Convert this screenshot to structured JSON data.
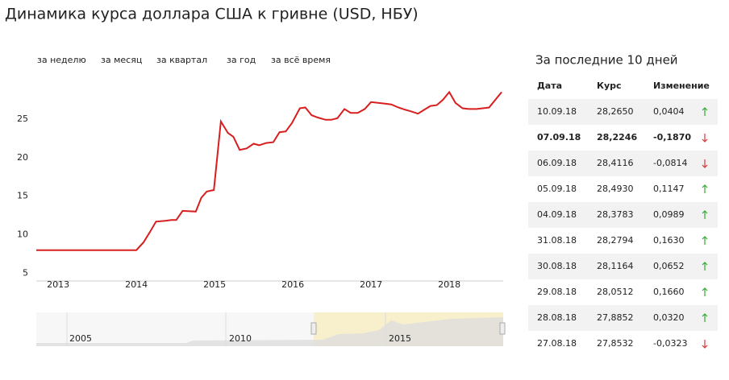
{
  "chart_data": {
    "type": "line",
    "title": "Динамика курса доллара США к гривне (USD, НБУ)",
    "x": [
      2012.72,
      2014.0,
      2014.09,
      2014.17,
      2014.25,
      2014.37,
      2014.45,
      2014.51,
      2014.59,
      2014.76,
      2014.83,
      2014.9,
      2014.99,
      2015.08,
      2015.17,
      2015.24,
      2015.32,
      2015.41,
      2015.5,
      2015.57,
      2015.66,
      2015.75,
      2015.83,
      2015.91,
      2015.99,
      2016.09,
      2016.16,
      2016.24,
      2016.32,
      2016.42,
      2016.49,
      2016.57,
      2016.66,
      2016.74,
      2016.83,
      2016.92,
      2017.0,
      2017.09,
      2017.18,
      2017.26,
      2017.35,
      2017.44,
      2017.51,
      2017.6,
      2017.68,
      2017.76,
      2017.84,
      2017.92,
      2018.0,
      2018.08,
      2018.17,
      2018.25,
      2018.35,
      2018.43,
      2018.51,
      2018.59,
      2018.67
    ],
    "values": [
      8.0,
      8.0,
      9.0,
      10.3,
      11.7,
      11.8,
      11.9,
      11.9,
      13.1,
      13.0,
      14.8,
      15.6,
      15.8,
      24.7,
      23.2,
      22.7,
      21.0,
      21.2,
      21.8,
      21.6,
      21.9,
      22.0,
      23.3,
      23.4,
      24.5,
      26.4,
      26.5,
      25.5,
      25.2,
      24.9,
      24.9,
      25.1,
      26.3,
      25.8,
      25.8,
      26.3,
      27.2,
      27.1,
      27.0,
      26.9,
      26.5,
      26.2,
      26.0,
      25.7,
      26.2,
      26.7,
      26.8,
      27.5,
      28.5,
      27.1,
      26.4,
      26.3,
      26.3,
      26.4,
      26.5,
      27.5,
      28.5
    ],
    "color": "#d81e1e",
    "xlim": [
      2012.72,
      2018.69
    ],
    "xticks": [
      2013,
      2014,
      2015,
      2016,
      2017,
      2018
    ],
    "ylim": [
      4,
      30
    ],
    "yticks": [
      5,
      10,
      15,
      20,
      25
    ],
    "grid": false
  },
  "range_buttons": [
    "за неделю",
    "за месяц",
    "за квартал",
    "за год",
    "за всё время"
  ],
  "navigator": {
    "labels": [
      "2005",
      "2010",
      "2015"
    ]
  },
  "table": {
    "title": "За последние 10 дней",
    "columns": [
      "Дата",
      "Курс",
      "Изменение"
    ],
    "rows": [
      [
        "10.09.18",
        "28,2650",
        "0,0404"
      ],
      [
        "07.09.18",
        "28,2246",
        "-0,1870"
      ],
      [
        "06.09.18",
        "28,4116",
        "-0,0814"
      ],
      [
        "05.09.18",
        "28,4930",
        "0,1147"
      ],
      [
        "04.09.18",
        "28,3783",
        "0,0989"
      ],
      [
        "31.08.18",
        "28,2794",
        "0,1630"
      ],
      [
        "30.08.18",
        "28,1164",
        "0,0652"
      ],
      [
        "29.08.18",
        "28,0512",
        "0,1660"
      ],
      [
        "28.08.18",
        "27,8852",
        "0,0320"
      ],
      [
        "27.08.18",
        "27,8532",
        "-0,0323"
      ]
    ]
  }
}
